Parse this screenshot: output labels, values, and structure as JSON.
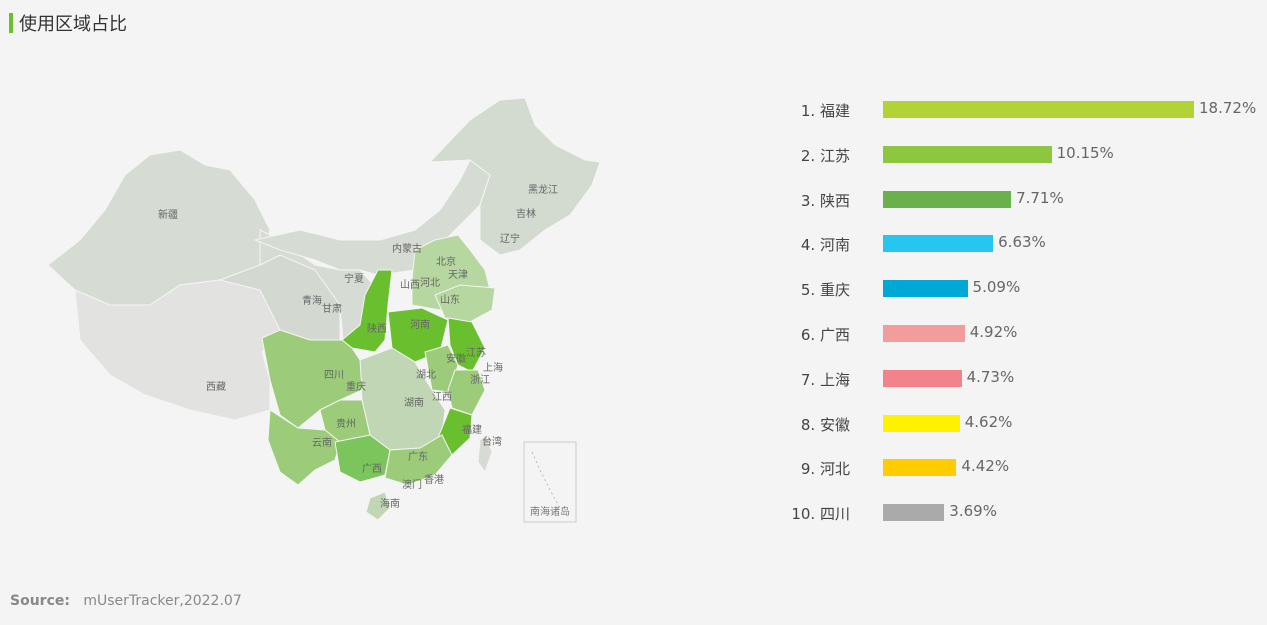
{
  "title": "使用区域占比",
  "source": {
    "label": "Source:",
    "text": "mUserTracker,2022.07"
  },
  "map_inset_label": "南海诸岛",
  "map_labels": [
    "新疆",
    "西藏",
    "内蒙古",
    "黑龙江",
    "吉林",
    "辽宁",
    "北京",
    "天津",
    "河北",
    "山西",
    "山东",
    "宁夏",
    "青海",
    "甘肃",
    "陕西",
    "河南",
    "四川",
    "重庆",
    "湖北",
    "安徽",
    "江苏",
    "上海",
    "浙江",
    "湖南",
    "江西",
    "福建",
    "台湾",
    "贵州",
    "云南",
    "广西",
    "广东",
    "澳门",
    "香港",
    "海南"
  ],
  "chart_data": {
    "type": "bar",
    "orientation": "horizontal",
    "categories": [
      "福建",
      "江苏",
      "陕西",
      "河南",
      "重庆",
      "广西",
      "上海",
      "安徽",
      "河北",
      "四川"
    ],
    "values": [
      18.72,
      10.15,
      7.71,
      6.63,
      5.09,
      4.92,
      4.73,
      4.62,
      4.42,
      3.69
    ],
    "value_labels": [
      "18.72%",
      "10.15%",
      "7.71%",
      "6.63%",
      "5.09%",
      "4.92%",
      "4.73%",
      "4.62%",
      "4.42%",
      "3.69%"
    ],
    "ranks": [
      "1.",
      "2.",
      "3.",
      "4.",
      "5.",
      "6.",
      "7.",
      "8.",
      "9.",
      "10."
    ],
    "colors": [
      "#b2d235",
      "#8dc63f",
      "#6ab04c",
      "#26c6f0",
      "#00a8d6",
      "#f29c9c",
      "#f2838a",
      "#fff200",
      "#ffcc00",
      "#aaaaaa"
    ],
    "unit": "%",
    "xlim": [
      0,
      18.72
    ]
  }
}
